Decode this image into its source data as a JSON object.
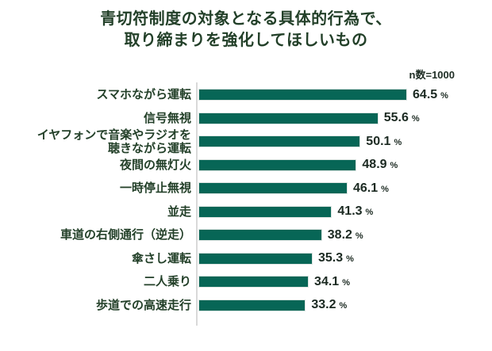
{
  "title": {
    "line1": "青切符制度の対象となる具体的行為で、",
    "line2": "取り締まりを強化してほしいもの"
  },
  "colors": {
    "bar": "#076656",
    "title_text": "#234029",
    "value_text": "#1c2a22",
    "axis_line": "#d9d9d9"
  },
  "chart_data": {
    "type": "bar",
    "orientation": "horizontal",
    "title": "青切符制度の対象となる具体的行為で、取り締まりを強化してほしいもの",
    "sample_size_label": "n数=1000",
    "unit": "%",
    "xlim": [
      0,
      70
    ],
    "grid": false,
    "legend": "none",
    "categories": [
      "スマホながら運転",
      "信号無視",
      "イヤフォンで音楽やラジオを\n聴きながら運転",
      "夜間の無灯火",
      "一時停止無視",
      "並走",
      "車道の右側通行（逆走）",
      "傘さし運転",
      "二人乗り",
      "歩道での高速走行"
    ],
    "values": [
      64.5,
      55.6,
      50.1,
      48.9,
      46.1,
      41.3,
      38.2,
      35.3,
      34.1,
      33.2
    ]
  }
}
